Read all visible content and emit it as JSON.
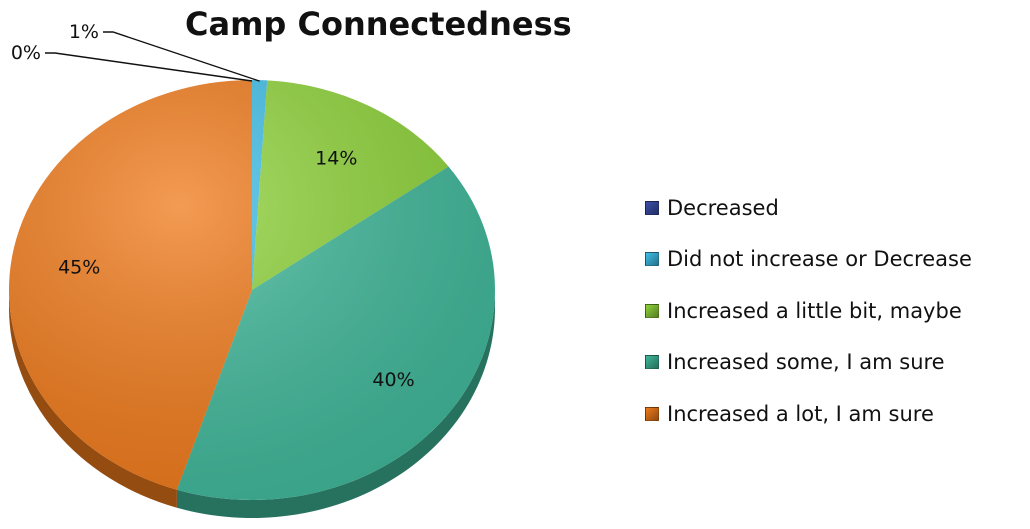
{
  "chart_data": {
    "type": "pie",
    "title": "Camp Connectedness",
    "categories": [
      "Decreased",
      "Did not increase or Decrease",
      "Increased a little bit, maybe",
      "Increased some, I am sure",
      "Increased a lot, I am sure"
    ],
    "values": [
      0,
      1,
      14,
      40,
      45
    ],
    "data_labels": [
      "0%",
      "1%",
      "14%",
      "40%",
      "45%"
    ],
    "colors": [
      "#3b4fa8",
      "#3fbfe8",
      "#8fd43a",
      "#3fb89a",
      "#f07a1a"
    ],
    "legend_position": "right",
    "three_d": true
  }
}
